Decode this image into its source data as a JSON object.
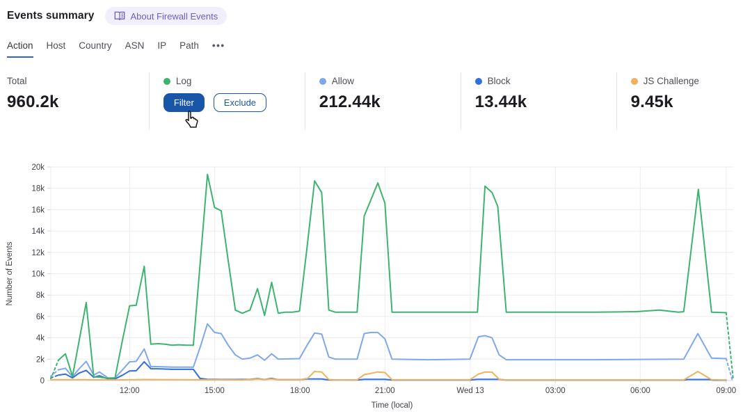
{
  "header": {
    "title": "Events summary",
    "badge": {
      "label": "About Firewall Events",
      "icon": "open-book-icon"
    }
  },
  "tabs": {
    "items": [
      {
        "label": "Action",
        "active": true
      },
      {
        "label": "Host"
      },
      {
        "label": "Country"
      },
      {
        "label": "ASN"
      },
      {
        "label": "IP"
      },
      {
        "label": "Path"
      },
      {
        "label": "•••",
        "overflow": true
      }
    ]
  },
  "stats": {
    "total": {
      "label": "Total",
      "value": "960.2k"
    },
    "cards": [
      {
        "label": "Log",
        "dot_color": "#3cb46e",
        "hovered": true,
        "buttons": [
          "Filter",
          "Exclude"
        ]
      },
      {
        "label": "Allow",
        "dot_color": "#7fa7ee",
        "value": "212.44k"
      },
      {
        "label": "Block",
        "dot_color": "#3170dd",
        "value": "13.44k"
      },
      {
        "label": "JS Challenge",
        "dot_color": "#efb25e",
        "value": "9.45k"
      }
    ]
  },
  "chart_data": {
    "type": "line",
    "xlabel": "Time (local)",
    "ylabel": "Number of Events",
    "x_unit": "minutes since chart start (~09:15 local)",
    "y_unit": "thousands of events",
    "x_domain": [
      0,
      1446
    ],
    "y_domain": [
      0,
      20
    ],
    "grid": true,
    "legend_position": "none (legend shown as stat cards above)",
    "x_ticks": [
      {
        "min": 167,
        "label": "12:00"
      },
      {
        "min": 347,
        "label": "15:00"
      },
      {
        "min": 528,
        "label": "18:00"
      },
      {
        "min": 708,
        "label": "21:00"
      },
      {
        "min": 889,
        "label": "Wed 13"
      },
      {
        "min": 1069,
        "label": "03:00"
      },
      {
        "min": 1249,
        "label": "06:00"
      },
      {
        "min": 1431,
        "label": "09:00"
      }
    ],
    "y_ticks": [
      {
        "value": 0,
        "label": "0"
      },
      {
        "value": 2,
        "label": "2k"
      },
      {
        "value": 4,
        "label": "4k"
      },
      {
        "value": 6,
        "label": "6k"
      },
      {
        "value": 8,
        "label": "8k"
      },
      {
        "value": 10,
        "label": "10k"
      },
      {
        "value": 12,
        "label": "12k"
      },
      {
        "value": 14,
        "label": "14k"
      },
      {
        "value": 16,
        "label": "16k"
      },
      {
        "value": 18,
        "label": "18k"
      },
      {
        "value": 20,
        "label": "20k"
      }
    ],
    "series": [
      {
        "name": "Allow",
        "color": "#7fa7ee",
        "dashed_head": true,
        "dashed_tail": true,
        "points": [
          [
            0,
            0.4
          ],
          [
            16,
            1.0
          ],
          [
            31,
            1.15
          ],
          [
            46,
            0.35
          ],
          [
            60,
            1.1
          ],
          [
            75,
            1.8
          ],
          [
            91,
            0.5
          ],
          [
            103,
            0.8
          ],
          [
            121,
            0.25
          ],
          [
            136,
            0.25
          ],
          [
            152,
            1.0
          ],
          [
            167,
            1.75
          ],
          [
            181,
            1.8
          ],
          [
            198,
            2.95
          ],
          [
            212,
            1.3
          ],
          [
            227,
            1.3
          ],
          [
            257,
            1.25
          ],
          [
            302,
            1.25
          ],
          [
            317,
            3.2
          ],
          [
            332,
            5.3
          ],
          [
            347,
            4.5
          ],
          [
            361,
            4.4
          ],
          [
            376,
            3.3
          ],
          [
            391,
            2.4
          ],
          [
            406,
            2.0
          ],
          [
            422,
            2.1
          ],
          [
            438,
            2.4
          ],
          [
            453,
            1.9
          ],
          [
            468,
            2.5
          ],
          [
            482,
            2.0
          ],
          [
            527,
            2.05
          ],
          [
            543,
            3.3
          ],
          [
            559,
            4.45
          ],
          [
            574,
            4.35
          ],
          [
            589,
            2.2
          ],
          [
            603,
            2.0
          ],
          [
            649,
            2.0
          ],
          [
            664,
            4.4
          ],
          [
            679,
            4.5
          ],
          [
            693,
            4.5
          ],
          [
            708,
            3.9
          ],
          [
            723,
            2.0
          ],
          [
            800,
            1.95
          ],
          [
            888,
            2.0
          ],
          [
            906,
            4.1
          ],
          [
            920,
            4.2
          ],
          [
            935,
            4.0
          ],
          [
            950,
            2.4
          ],
          [
            965,
            1.95
          ],
          [
            1150,
            1.95
          ],
          [
            1341,
            2.0
          ],
          [
            1371,
            4.4
          ],
          [
            1400,
            2.1
          ],
          [
            1431,
            2.05
          ],
          [
            1444,
            0.05
          ]
        ]
      },
      {
        "name": "Block",
        "color": "#3170dd",
        "dashed_head": true,
        "dashed_tail": false,
        "points": [
          [
            0,
            0.25
          ],
          [
            16,
            0.5
          ],
          [
            31,
            0.6
          ],
          [
            46,
            0.25
          ],
          [
            60,
            0.7
          ],
          [
            75,
            0.95
          ],
          [
            91,
            0.3
          ],
          [
            103,
            0.45
          ],
          [
            121,
            0.15
          ],
          [
            136,
            0.15
          ],
          [
            152,
            0.5
          ],
          [
            167,
            0.9
          ],
          [
            181,
            0.92
          ],
          [
            198,
            1.75
          ],
          [
            212,
            1.1
          ],
          [
            227,
            1.1
          ],
          [
            257,
            1.05
          ],
          [
            302,
            1.05
          ],
          [
            316,
            0.2
          ],
          [
            332,
            0.12
          ],
          [
            361,
            0.1
          ],
          [
            391,
            0.1
          ],
          [
            422,
            0.12
          ],
          [
            438,
            0.18
          ],
          [
            453,
            0.1
          ],
          [
            468,
            0.2
          ],
          [
            482,
            0.08
          ],
          [
            527,
            0.08
          ],
          [
            543,
            0.15
          ],
          [
            574,
            0.15
          ],
          [
            589,
            0.06
          ],
          [
            649,
            0.05
          ],
          [
            664,
            0.12
          ],
          [
            708,
            0.12
          ],
          [
            723,
            0.05
          ],
          [
            888,
            0.05
          ],
          [
            904,
            0.12
          ],
          [
            950,
            0.12
          ],
          [
            965,
            0.04
          ],
          [
            1341,
            0.04
          ],
          [
            1350,
            0.1
          ],
          [
            1395,
            0.1
          ],
          [
            1405,
            0.03
          ],
          [
            1431,
            0.03
          ]
        ]
      },
      {
        "name": "Log",
        "color": "#3cb46e",
        "dashed_head": true,
        "dashed_tail": true,
        "points": [
          [
            0,
            0.15
          ],
          [
            16,
            1.9
          ],
          [
            31,
            2.5
          ],
          [
            46,
            0.4
          ],
          [
            60,
            3.7
          ],
          [
            75,
            7.3
          ],
          [
            91,
            0.35
          ],
          [
            106,
            0.3
          ],
          [
            121,
            0.2
          ],
          [
            136,
            0.25
          ],
          [
            152,
            3.8
          ],
          [
            167,
            7.0
          ],
          [
            181,
            7.05
          ],
          [
            198,
            10.7
          ],
          [
            212,
            3.4
          ],
          [
            227,
            3.45
          ],
          [
            242,
            3.4
          ],
          [
            257,
            3.3
          ],
          [
            271,
            3.35
          ],
          [
            288,
            3.3
          ],
          [
            302,
            3.3
          ],
          [
            317,
            11.3
          ],
          [
            332,
            19.3
          ],
          [
            347,
            16.2
          ],
          [
            361,
            15.9
          ],
          [
            376,
            11.2
          ],
          [
            391,
            6.6
          ],
          [
            406,
            6.3
          ],
          [
            422,
            6.6
          ],
          [
            438,
            8.6
          ],
          [
            453,
            6.1
          ],
          [
            468,
            9.2
          ],
          [
            482,
            6.3
          ],
          [
            497,
            6.4
          ],
          [
            512,
            6.4
          ],
          [
            527,
            6.5
          ],
          [
            543,
            12.5
          ],
          [
            559,
            18.7
          ],
          [
            574,
            17.6
          ],
          [
            589,
            6.6
          ],
          [
            603,
            6.4
          ],
          [
            649,
            6.4
          ],
          [
            664,
            15.4
          ],
          [
            679,
            17.0
          ],
          [
            693,
            18.5
          ],
          [
            708,
            16.6
          ],
          [
            723,
            6.4
          ],
          [
            800,
            6.4
          ],
          [
            889,
            6.4
          ],
          [
            904,
            6.4
          ],
          [
            920,
            18.2
          ],
          [
            935,
            17.6
          ],
          [
            947,
            16.3
          ],
          [
            965,
            6.4
          ],
          [
            1150,
            6.4
          ],
          [
            1240,
            6.45
          ],
          [
            1289,
            6.6
          ],
          [
            1330,
            6.4
          ],
          [
            1341,
            6.45
          ],
          [
            1372,
            17.9
          ],
          [
            1400,
            6.4
          ],
          [
            1431,
            6.35
          ],
          [
            1446,
            0.1
          ]
        ]
      },
      {
        "name": "JS Challenge",
        "color": "#efb25e",
        "dashed_head": false,
        "dashed_tail": false,
        "points": [
          [
            0,
            0.08
          ],
          [
            75,
            0.08
          ],
          [
            136,
            0.06
          ],
          [
            198,
            0.1
          ],
          [
            302,
            0.07
          ],
          [
            406,
            0.06
          ],
          [
            422,
            0.1
          ],
          [
            438,
            0.14
          ],
          [
            453,
            0.1
          ],
          [
            468,
            0.15
          ],
          [
            482,
            0.07
          ],
          [
            527,
            0.07
          ],
          [
            544,
            0.2
          ],
          [
            559,
            0.85
          ],
          [
            574,
            0.8
          ],
          [
            589,
            0.1
          ],
          [
            603,
            0.06
          ],
          [
            649,
            0.06
          ],
          [
            664,
            0.55
          ],
          [
            693,
            0.8
          ],
          [
            708,
            0.75
          ],
          [
            723,
            0.07
          ],
          [
            888,
            0.07
          ],
          [
            906,
            0.6
          ],
          [
            920,
            0.8
          ],
          [
            935,
            0.78
          ],
          [
            950,
            0.12
          ],
          [
            965,
            0.06
          ],
          [
            1341,
            0.06
          ],
          [
            1371,
            0.85
          ],
          [
            1400,
            0.08
          ],
          [
            1431,
            0.06
          ]
        ]
      }
    ]
  }
}
